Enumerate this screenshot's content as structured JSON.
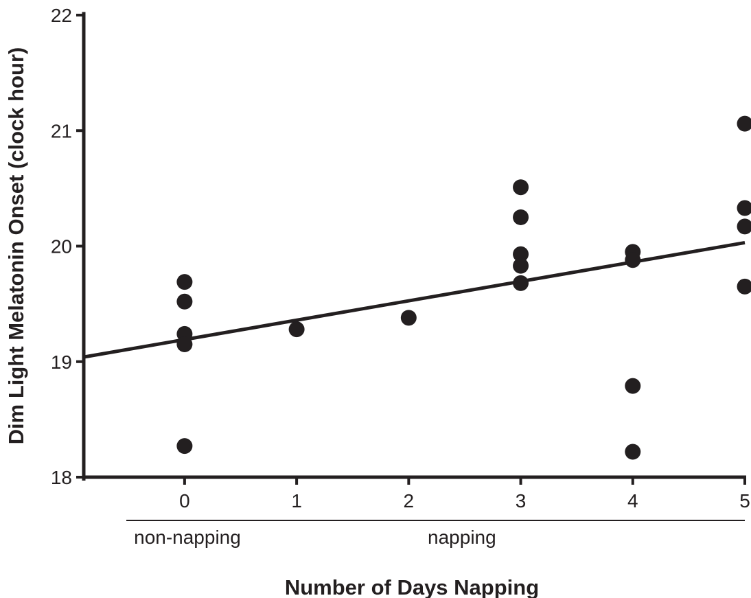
{
  "chart_data": {
    "type": "scatter",
    "title": "",
    "xlabel": "Number of Days Napping",
    "ylabel": "Dim Light Melatonin Onset (clock hour)",
    "xlim": [
      -0.9,
      5.0
    ],
    "ylim": [
      18,
      22
    ],
    "x_ticks": [
      0,
      1,
      2,
      3,
      4,
      5
    ],
    "y_ticks": [
      18,
      19,
      20,
      21,
      22
    ],
    "grid": false,
    "legend": "none",
    "series": [
      {
        "points": [
          {
            "x": 0,
            "y": 19.69
          },
          {
            "x": 0,
            "y": 19.52
          },
          {
            "x": 0,
            "y": 19.24
          },
          {
            "x": 0,
            "y": 19.15
          },
          {
            "x": 0,
            "y": 18.27
          },
          {
            "x": 1,
            "y": 19.28
          },
          {
            "x": 2,
            "y": 19.38
          },
          {
            "x": 3,
            "y": 20.51
          },
          {
            "x": 3,
            "y": 20.25
          },
          {
            "x": 3,
            "y": 19.93
          },
          {
            "x": 3,
            "y": 19.83
          },
          {
            "x": 3,
            "y": 19.68
          },
          {
            "x": 4,
            "y": 19.95
          },
          {
            "x": 4,
            "y": 19.88
          },
          {
            "x": 4,
            "y": 18.79
          },
          {
            "x": 4,
            "y": 18.22
          },
          {
            "x": 5,
            "y": 21.06
          },
          {
            "x": 5,
            "y": 20.33
          },
          {
            "x": 5,
            "y": 20.17
          },
          {
            "x": 5,
            "y": 19.65
          }
        ]
      }
    ],
    "trend_line": {
      "x": [
        -0.9,
        5.0
      ],
      "y": [
        19.04,
        20.03
      ]
    },
    "group_labels": [
      {
        "label": "non-napping",
        "x_from": -0.52,
        "x_to": 0.57
      },
      {
        "label": "napping",
        "x_from": -0.05,
        "x_to": 5.0
      }
    ],
    "colors": {
      "ink": "#231f20"
    }
  }
}
